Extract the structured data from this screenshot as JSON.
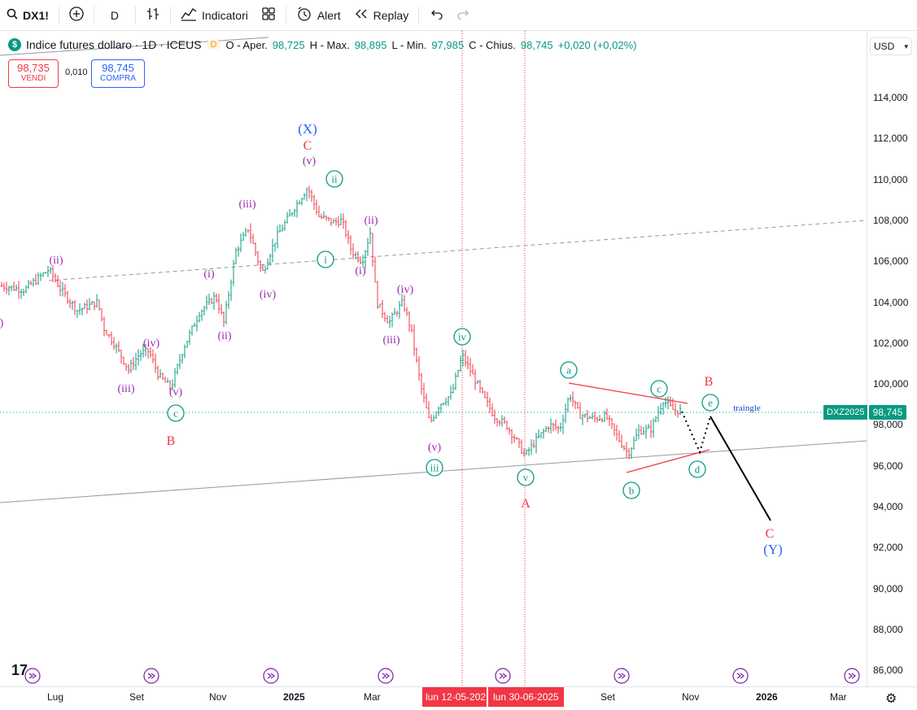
{
  "toolbar": {
    "symbol": "DX1!",
    "interval": "D",
    "indicators_label": "Indicatori",
    "alert_label": "Alert",
    "replay_label": "Replay"
  },
  "legend": {
    "title": "Indice futures dollaro · 1D · ICEUS",
    "d_badge": "D",
    "open_label": "O - Aper.",
    "open": "98,725",
    "high_label": "H - Max.",
    "high": "98,895",
    "low_label": "L - Min.",
    "low": "97,985",
    "close_label": "C - Chius.",
    "close": "98,745",
    "change": "+0,020 (+0,02%)"
  },
  "trade": {
    "sell_price": "98,735",
    "sell_label": "VENDI",
    "spread": "0,010",
    "buy_price": "98,745",
    "buy_label": "COMPRA"
  },
  "currency": "USD",
  "price_ticks": [
    "114,000",
    "112,000",
    "110,000",
    "108,000",
    "106,000",
    "104,000",
    "102,000",
    "100,000",
    "98,000",
    "96,000",
    "94,000",
    "92,000",
    "90,000",
    "88,000",
    "86,000"
  ],
  "last_price": "98,745",
  "contract_tag": "DXZ2025",
  "time_ticks": [
    "Lug",
    "Set",
    "Nov",
    "2025",
    "Mar",
    "Set",
    "Nov",
    "2026",
    "Mar"
  ],
  "date_flags": [
    "lun 12-05-202",
    "lun 30-06-2025"
  ],
  "annotations": {
    "x_wave": "(X)",
    "c_top": "C",
    "v_top": "(v)",
    "ii_circle": "ii",
    "i_circle": "i",
    "iii_top": "(iii)",
    "ii_right": "(ii)",
    "i_left": "(i)",
    "iv_left": "(iv)",
    "ii_upper_left": "(ii)",
    "ii_lower": "(ii)",
    "i_right": "(i)",
    "iv_right": "(iv)",
    "iii_right": "(iii)",
    "iv_circle": "iv",
    "v_right": "(v)",
    "iii_circle": "iii",
    "v_circle": "v",
    "A": "A",
    "iv_lower": "(iv)",
    "iii_lower": "(iii)",
    "v_lower": "(v)",
    "c_circle_left": "c",
    "B_left": "B",
    "a_circle": "a",
    "b_circle": "b",
    "c_circle": "c",
    "d_circle": "d",
    "e_circle": "e",
    "B_right": "B",
    "C_target": "C",
    "Y_target": "(Y)",
    "triangle_label": "traingle",
    "left_edge": ")"
  },
  "colors": {
    "up": "#089981",
    "down": "#f23645",
    "purple": "#9c27b0",
    "red": "#f23645",
    "blue": "#2962ff",
    "teal": "#089981"
  }
}
